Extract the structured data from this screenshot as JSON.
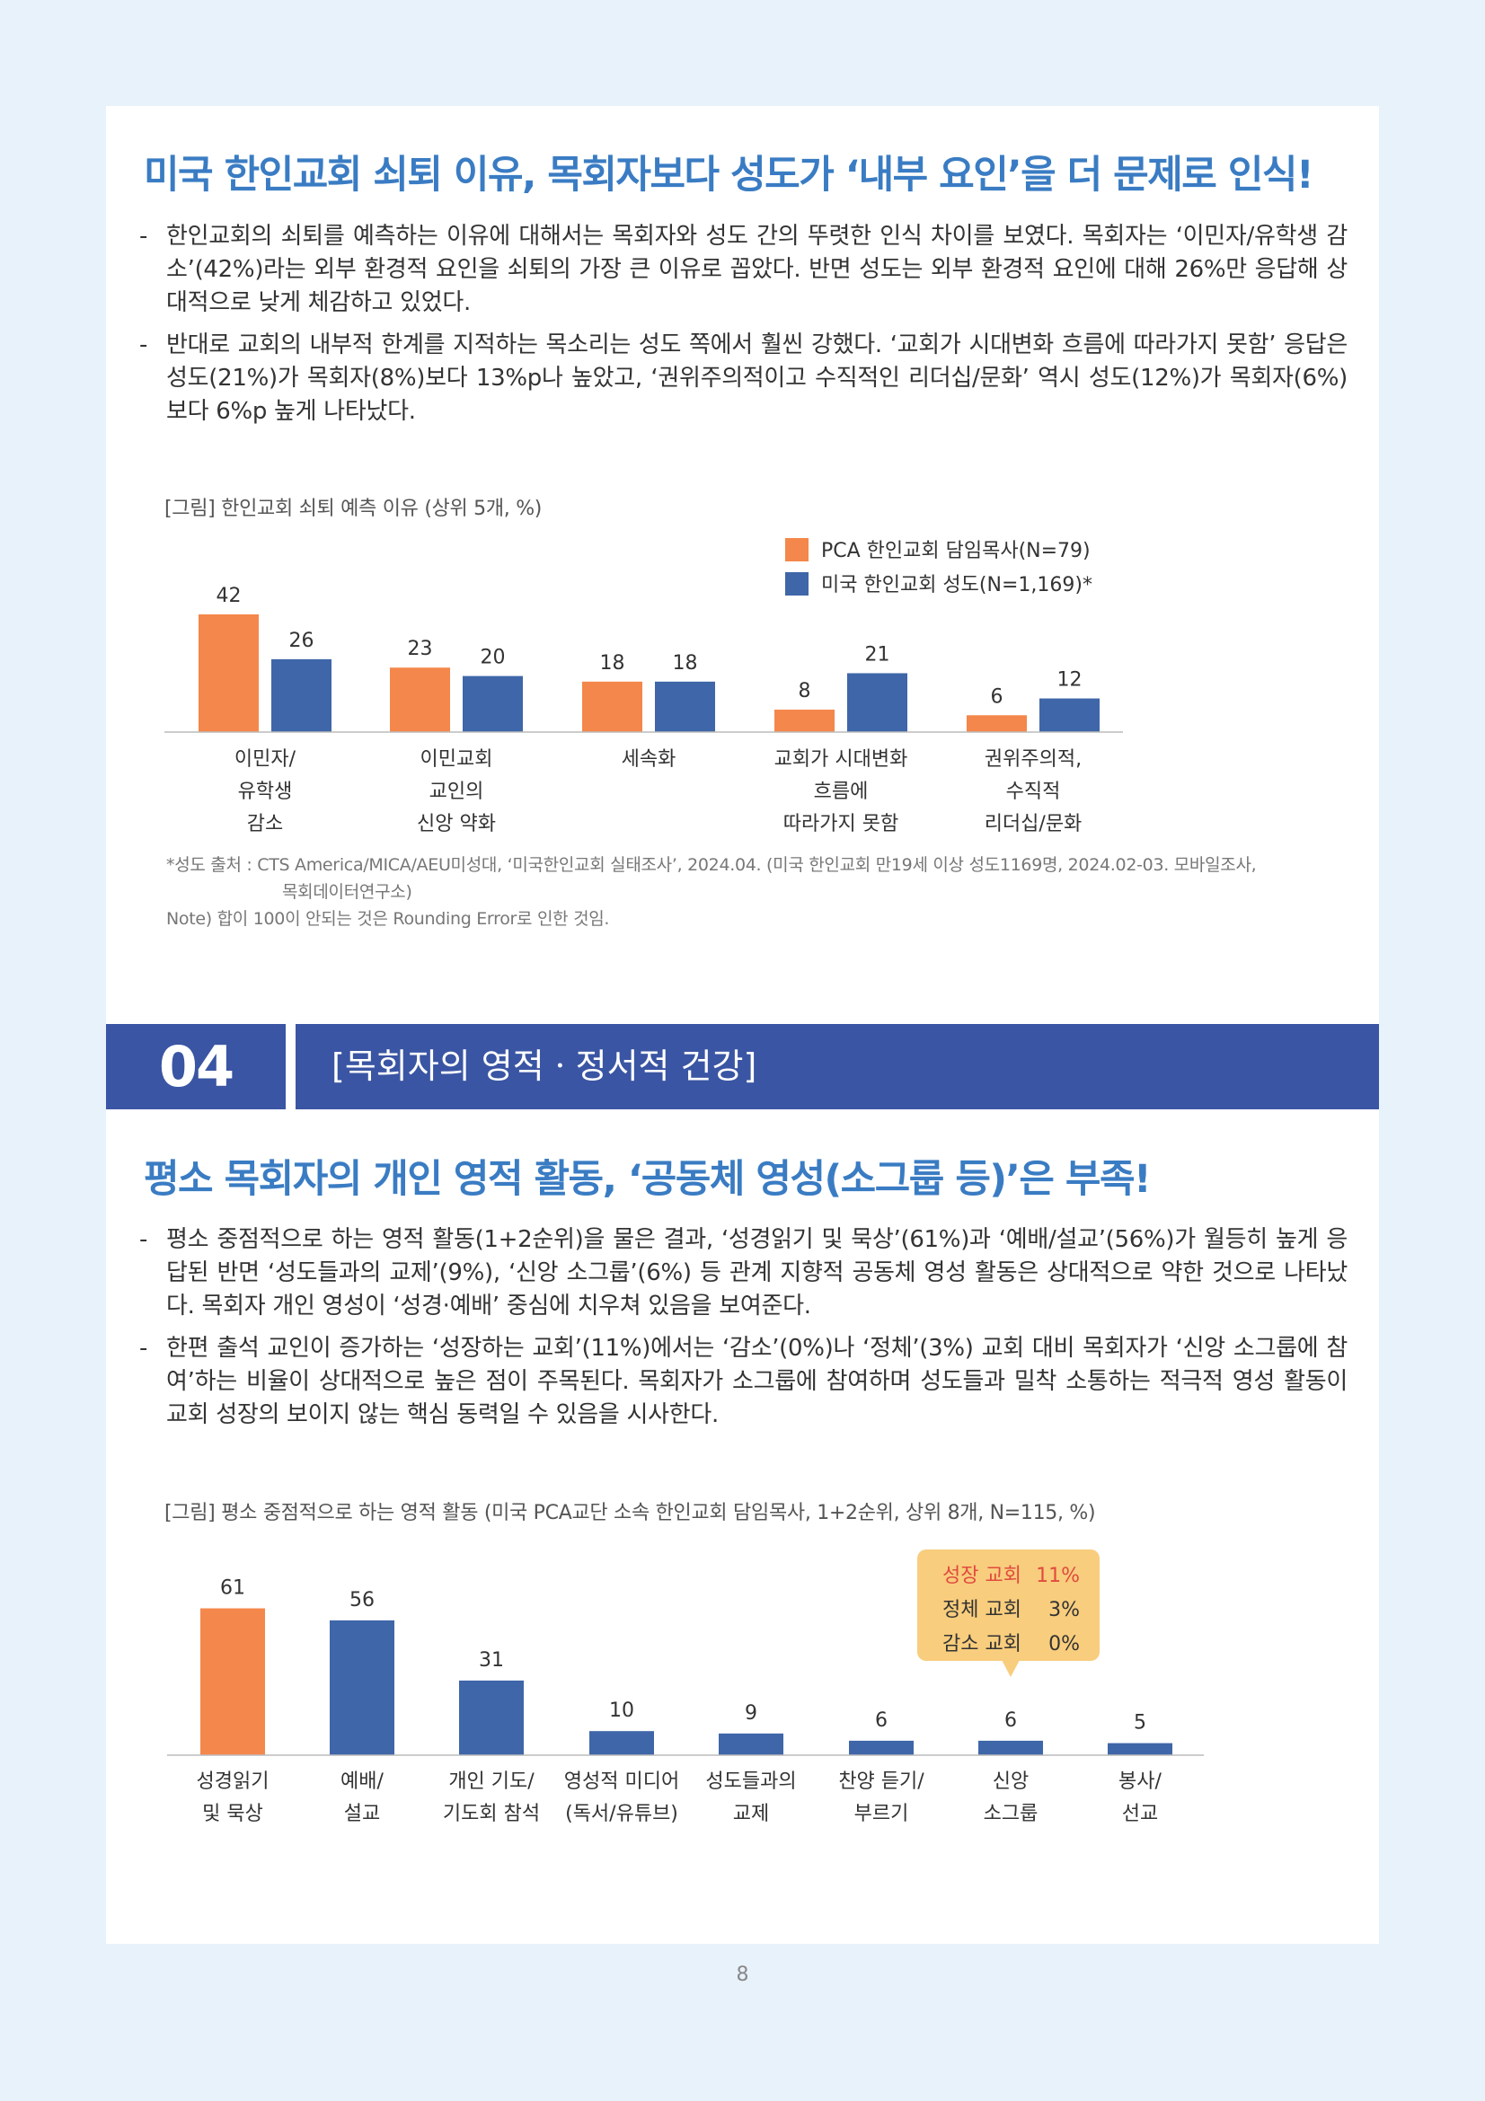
{
  "section1": {
    "headline": "미국 한인교회 쇠퇴 이유, 목회자보다 성도가 ‘내부 요인’을 더 문제로 인식!",
    "bullets": [
      "한인교회의 쇠퇴를 예측하는 이유에 대해서는 목회자와 성도 간의 뚜렷한 인식 차이를 보였다. 목회자는 ‘이민자/유학생 감소’(42%)라는 외부 환경적 요인을 쇠퇴의 가장 큰 이유로 꼽았다. 반면 성도는 외부 환경적 요인에 대해 26%만 응답해 상대적으로 낮게 체감하고 있었다.",
      "반대로 교회의 내부적 한계를 지적하는 목소리는 성도 쪽에서 훨씬 강했다. ‘교회가 시대변화 흐름에 따라가지 못함’ 응답은 성도(21%)가 목회자(8%)보다 13%p나 높았고, ‘권위주의적이고 수직적인 리더십/문화’ 역시 성도(12%)가 목회자(6%)보다 6%p 높게 나타났다."
    ],
    "caption": "[그림] 한인교회 쇠퇴 예측 이유 (상위 5개, %)",
    "notes": [
      "*성도 출처 : CTS America/MICA/AEU미성대, ‘미국한인교회 실태조사’, 2024.04. (미국 한인교회 만19세 이상 성도1169명, 2024.02-03. 모바일조사,",
      "목회데이터연구소)",
      "Note) 합이 100이 안되는 것은 Rounding Error로 인한 것임."
    ]
  },
  "section_header": {
    "number": "04",
    "title": "[목회자의 영적ㆍ정서적 건강]"
  },
  "section2": {
    "headline": "평소 목회자의 개인 영적 활동, ‘공동체 영성(소그룹 등)’은 부족!",
    "bullets": [
      "평소 중점적으로 하는 영적 활동(1+2순위)을 물은 결과, ‘성경읽기 및 묵상’(61%)과 ‘예배/설교’(56%)가 월등히 높게 응답된 반면 ‘성도들과의 교제’(9%), ‘신앙 소그룹’(6%) 등 관계 지향적 공동체 영성 활동은 상대적으로 약한 것으로 나타났다. 목회자 개인 영성이 ‘성경·예배’ 중심에 치우쳐 있음을 보여준다.",
      "한편 출석 교인이 증가하는 ‘성장하는 교회’(11%)에서는 ‘감소’(0%)나 ‘정체’(3%) 교회 대비 목회자가 ‘신앙 소그룹에 참여’하는 비율이 상대적으로 높은 점이 주목된다. 목회자가 소그룹에 참여하며 성도들과 밀착 소통하는 적극적 영성 활동이 교회 성장의 보이지 않는 핵심 동력일 수 있음을 시사한다."
    ],
    "caption": "[그림] 평소 중점적으로 하는 영적 활동 (미국 PCA교단 소속 한인교회 담임목사, 1+2순위, 상위 8개, N=115, %)"
  },
  "page_number": "8",
  "colors": {
    "orange": "#f4874b",
    "blue": "#3f66a8",
    "headline": "#3a7cc3",
    "section_bar": "#3a55a3",
    "callout": "#f8cd7d",
    "callout_red": "#e04b3f"
  },
  "chart_data": [
    {
      "type": "bar",
      "categories": [
        [
          "이민자/",
          "유학생",
          "감소"
        ],
        [
          "이민교회",
          "교인의",
          "신앙 약화"
        ],
        [
          "세속화"
        ],
        [
          "교회가 시대변화",
          "흐름에",
          "따라가지 못함"
        ],
        [
          "권위주의적,",
          "수직적",
          "리더십/문화"
        ]
      ],
      "series": [
        {
          "name": "PCA 한인교회 담임목사(N=79)",
          "color": "#f4874b",
          "values": [
            42,
            23,
            18,
            8,
            6
          ]
        },
        {
          "name": "미국 한인교회 성도(N=1,169)*",
          "color": "#3f66a8",
          "values": [
            26,
            20,
            18,
            21,
            12
          ]
        }
      ],
      "legend": "top-right"
    },
    {
      "type": "bar",
      "categories": [
        [
          "성경읽기",
          "및 묵상"
        ],
        [
          "예배/",
          "설교"
        ],
        [
          "개인 기도/",
          "기도회 참석"
        ],
        [
          "영성적 미디어",
          "(독서/유튜브)"
        ],
        [
          "성도들과의",
          "교제"
        ],
        [
          "찬양 듣기/",
          "부르기"
        ],
        [
          "신앙",
          "소그룹"
        ],
        [
          "봉사/",
          "선교"
        ]
      ],
      "values": [
        61,
        56,
        31,
        10,
        9,
        6,
        6,
        5
      ],
      "colors": [
        "#f4874b",
        "#3f66a8",
        "#3f66a8",
        "#3f66a8",
        "#3f66a8",
        "#3f66a8",
        "#3f66a8",
        "#3f66a8"
      ],
      "callout": {
        "target_index": 6,
        "rows": [
          {
            "label": "성장 교회",
            "value": "11%",
            "highlight": true
          },
          {
            "label": "정체 교회",
            "value": "3%",
            "highlight": false
          },
          {
            "label": "감소 교회",
            "value": "0%",
            "highlight": false
          }
        ]
      }
    }
  ]
}
